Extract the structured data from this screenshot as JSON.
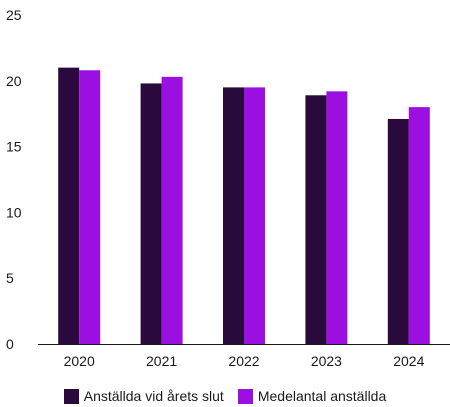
{
  "chart_data": {
    "type": "bar",
    "title": "",
    "xlabel": "",
    "ylabel": "",
    "categories": [
      "2020",
      "2021",
      "2022",
      "2023",
      "2024"
    ],
    "ylim": [
      0,
      25
    ],
    "yticks": [
      "0",
      "5",
      "10",
      "15",
      "20",
      "25"
    ],
    "grid": false,
    "legend_position": "bottom",
    "series": [
      {
        "name": "Anställda vid årets slut",
        "color": "#2a0a3d",
        "values": [
          21.0,
          19.8,
          19.5,
          18.9,
          17.1
        ]
      },
      {
        "name": "Medelantal anställda",
        "color": "#9b10e0",
        "values": [
          20.8,
          20.3,
          19.5,
          19.2,
          18.0
        ]
      }
    ]
  }
}
